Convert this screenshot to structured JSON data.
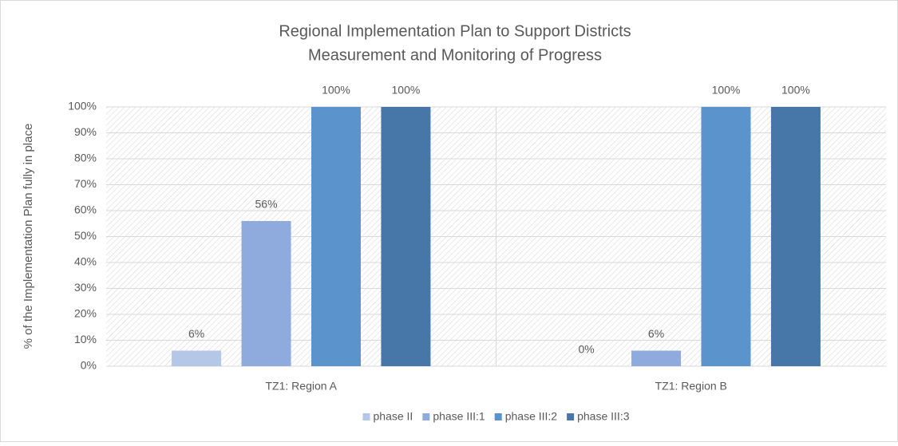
{
  "chart_data": {
    "type": "bar",
    "title": [
      "Regional Implementation Plan to Support Districts",
      "Measurement and Monitoring of Progress"
    ],
    "y_label": "% of the Implementation Plan fully in place",
    "categories": [
      "TZ1: Region A",
      "TZ1: Region B"
    ],
    "series": [
      {
        "name": "phase II",
        "color": "#b4c7e7",
        "values": [
          6,
          0
        ],
        "value_labels": [
          "6%",
          "0%"
        ]
      },
      {
        "name": "phase III:1",
        "color": "#8faadc",
        "values": [
          56,
          6
        ],
        "value_labels": [
          "56%",
          "6%"
        ]
      },
      {
        "name": "phase III:2",
        "color": "#5b93cc",
        "values": [
          100,
          100
        ],
        "value_labels": [
          "100%",
          "100%"
        ]
      },
      {
        "name": "phase III:3",
        "color": "#4677a8",
        "values": [
          100,
          100
        ],
        "value_labels": [
          "100%",
          "100%"
        ]
      }
    ],
    "ylim": [
      0,
      100
    ],
    "yticks": [
      {
        "value": 0,
        "label": "0%"
      },
      {
        "value": 10,
        "label": "10%"
      },
      {
        "value": 20,
        "label": "20%"
      },
      {
        "value": 30,
        "label": "30%"
      },
      {
        "value": 40,
        "label": "40%"
      },
      {
        "value": 50,
        "label": "50%"
      },
      {
        "value": 60,
        "label": "60%"
      },
      {
        "value": 70,
        "label": "70%"
      },
      {
        "value": 80,
        "label": "80%"
      },
      {
        "value": 90,
        "label": "90%"
      },
      {
        "value": 100,
        "label": "100%"
      }
    ],
    "grid": true,
    "legend": "bottom"
  }
}
